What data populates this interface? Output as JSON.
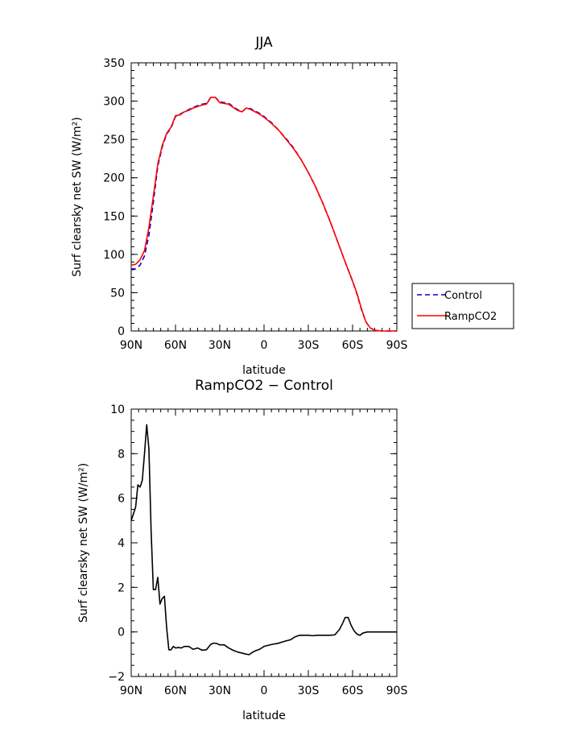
{
  "chart_data": [
    {
      "type": "line",
      "title": "JJA",
      "xlabel": "latitude",
      "ylabel": "Surf clearsky net SW (W/m²)",
      "xlim": [
        90,
        -90
      ],
      "ylim": [
        0,
        350
      ],
      "x_ticks": [
        90,
        60,
        30,
        0,
        -30,
        -60,
        -90
      ],
      "x_tick_labels": [
        "90N",
        "60N",
        "30N",
        "0",
        "30S",
        "60S",
        "90S"
      ],
      "y_ticks": [
        0,
        50,
        100,
        150,
        200,
        250,
        300,
        350
      ],
      "y_tick_labels": [
        "0",
        "50",
        "100",
        "150",
        "200",
        "250",
        "300",
        "350"
      ],
      "grid": false,
      "legend_position": "right",
      "series": [
        {
          "name": "Control",
          "color": "#0000cc",
          "style": "dashed",
          "points": [
            [
              90,
              81
            ],
            [
              87,
              81
            ],
            [
              84,
              86
            ],
            [
              81,
              98
            ],
            [
              78,
              125
            ],
            [
              75,
              168
            ],
            [
              72,
              215
            ],
            [
              69,
              240
            ],
            [
              66,
              257
            ],
            [
              63,
              265
            ],
            [
              60,
              280
            ],
            [
              57,
              283
            ],
            [
              54,
              286
            ],
            [
              51,
              289
            ],
            [
              48,
              292
            ],
            [
              45,
              294
            ],
            [
              42,
              296
            ],
            [
              39,
              297
            ],
            [
              36,
              305
            ],
            [
              33,
              305
            ],
            [
              30,
              299
            ],
            [
              27,
              298
            ],
            [
              24,
              297
            ],
            [
              21,
              293
            ],
            [
              18,
              289
            ],
            [
              15,
              286
            ],
            [
              12,
              291
            ],
            [
              9,
              290
            ],
            [
              6,
              287
            ],
            [
              3,
              284
            ],
            [
              0,
              280
            ],
            [
              -5,
              272
            ],
            [
              -10,
              262
            ],
            [
              -15,
              251
            ],
            [
              -20,
              239
            ],
            [
              -25,
              224
            ],
            [
              -30,
              207
            ],
            [
              -35,
              188
            ],
            [
              -40,
              166
            ],
            [
              -45,
              142
            ],
            [
              -50,
              116
            ],
            [
              -55,
              90
            ],
            [
              -60,
              65
            ],
            [
              -63,
              48
            ],
            [
              -66,
              28
            ],
            [
              -69,
              12
            ],
            [
              -72,
              4
            ],
            [
              -75,
              1
            ],
            [
              -80,
              0
            ],
            [
              -90,
              0
            ]
          ]
        },
        {
          "name": "RampCO2",
          "color": "#ff0000",
          "style": "solid",
          "points": [
            [
              90,
              86
            ],
            [
              87,
              87
            ],
            [
              84,
              93
            ],
            [
              81,
              105
            ],
            [
              78,
              135
            ],
            [
              75,
              176
            ],
            [
              72,
              218
            ],
            [
              69,
              242
            ],
            [
              66,
              258
            ],
            [
              63,
              266
            ],
            [
              60,
              281
            ],
            [
              57,
              282
            ],
            [
              54,
              286
            ],
            [
              51,
              288
            ],
            [
              48,
              291
            ],
            [
              45,
              293
            ],
            [
              42,
              295
            ],
            [
              39,
              296
            ],
            [
              36,
              305
            ],
            [
              33,
              305
            ],
            [
              30,
              298
            ],
            [
              27,
              297
            ],
            [
              24,
              296
            ],
            [
              21,
              292
            ],
            [
              18,
              288
            ],
            [
              15,
              286
            ],
            [
              12,
              291
            ],
            [
              9,
              289
            ],
            [
              6,
              286
            ],
            [
              3,
              283
            ],
            [
              0,
              279
            ],
            [
              -5,
              271
            ],
            [
              -10,
              262
            ],
            [
              -15,
              250
            ],
            [
              -20,
              238
            ],
            [
              -25,
              224
            ],
            [
              -30,
              207
            ],
            [
              -35,
              188
            ],
            [
              -40,
              166
            ],
            [
              -45,
              142
            ],
            [
              -50,
              116
            ],
            [
              -55,
              90
            ],
            [
              -60,
              65
            ],
            [
              -63,
              49
            ],
            [
              -66,
              29
            ],
            [
              -69,
              12
            ],
            [
              -72,
              4
            ],
            [
              -75,
              1
            ],
            [
              -80,
              0
            ],
            [
              -90,
              0
            ]
          ]
        }
      ]
    },
    {
      "type": "line",
      "title": "RampCO2 − Control",
      "xlabel": "latitude",
      "ylabel": "Surf clearsky net SW (W/m²)",
      "xlim": [
        90,
        -90
      ],
      "ylim": [
        -2,
        10
      ],
      "x_ticks": [
        90,
        60,
        30,
        0,
        -30,
        -60,
        -90
      ],
      "x_tick_labels": [
        "90N",
        "60N",
        "30N",
        "0",
        "30S",
        "60S",
        "90S"
      ],
      "y_ticks": [
        -2,
        0,
        2,
        4,
        6,
        8,
        10
      ],
      "y_tick_labels": [
        "−2",
        "0",
        "2",
        "4",
        "6",
        "8",
        "10"
      ],
      "grid": false,
      "series": [
        {
          "color": "#000000",
          "style": "solid",
          "points": [
            [
              90,
              5.0
            ],
            [
              88.5,
              5.3
            ],
            [
              87,
              5.6
            ],
            [
              85.5,
              6.6
            ],
            [
              84,
              6.5
            ],
            [
              82.5,
              6.8
            ],
            [
              81,
              8.0
            ],
            [
              79.5,
              9.3
            ],
            [
              78,
              8.2
            ],
            [
              76.5,
              4.5
            ],
            [
              75,
              1.9
            ],
            [
              73.5,
              1.9
            ],
            [
              72,
              2.45
            ],
            [
              70.5,
              1.25
            ],
            [
              69,
              1.5
            ],
            [
              67.5,
              1.6
            ],
            [
              66,
              0.2
            ],
            [
              64.5,
              -0.8
            ],
            [
              63,
              -0.8
            ],
            [
              61.5,
              -0.65
            ],
            [
              60,
              -0.72
            ],
            [
              58,
              -0.7
            ],
            [
              56,
              -0.72
            ],
            [
              54,
              -0.65
            ],
            [
              51,
              -0.65
            ],
            [
              48,
              -0.78
            ],
            [
              45,
              -0.72
            ],
            [
              42,
              -0.82
            ],
            [
              39,
              -0.8
            ],
            [
              36,
              -0.55
            ],
            [
              34,
              -0.5
            ],
            [
              32,
              -0.52
            ],
            [
              30,
              -0.58
            ],
            [
              27,
              -0.58
            ],
            [
              24,
              -0.72
            ],
            [
              21,
              -0.82
            ],
            [
              18,
              -0.9
            ],
            [
              15,
              -0.95
            ],
            [
              12,
              -1.0
            ],
            [
              10,
              -1.02
            ],
            [
              8,
              -0.92
            ],
            [
              6,
              -0.85
            ],
            [
              3,
              -0.78
            ],
            [
              0,
              -0.65
            ],
            [
              -3,
              -0.6
            ],
            [
              -6,
              -0.55
            ],
            [
              -9,
              -0.52
            ],
            [
              -12,
              -0.46
            ],
            [
              -15,
              -0.4
            ],
            [
              -18,
              -0.35
            ],
            [
              -21,
              -0.22
            ],
            [
              -24,
              -0.15
            ],
            [
              -27,
              -0.15
            ],
            [
              -30,
              -0.15
            ],
            [
              -33,
              -0.17
            ],
            [
              -36,
              -0.15
            ],
            [
              -39,
              -0.15
            ],
            [
              -42,
              -0.15
            ],
            [
              -45,
              -0.15
            ],
            [
              -48,
              -0.13
            ],
            [
              -51,
              0.1
            ],
            [
              -53,
              0.35
            ],
            [
              -55,
              0.65
            ],
            [
              -57,
              0.65
            ],
            [
              -59,
              0.3
            ],
            [
              -61,
              0.05
            ],
            [
              -63,
              -0.1
            ],
            [
              -65,
              -0.15
            ],
            [
              -67,
              -0.05
            ],
            [
              -70,
              0.0
            ],
            [
              -75,
              0.0
            ],
            [
              -80,
              0.0
            ],
            [
              -85,
              0.0
            ],
            [
              -90,
              0.0
            ]
          ]
        }
      ]
    }
  ]
}
